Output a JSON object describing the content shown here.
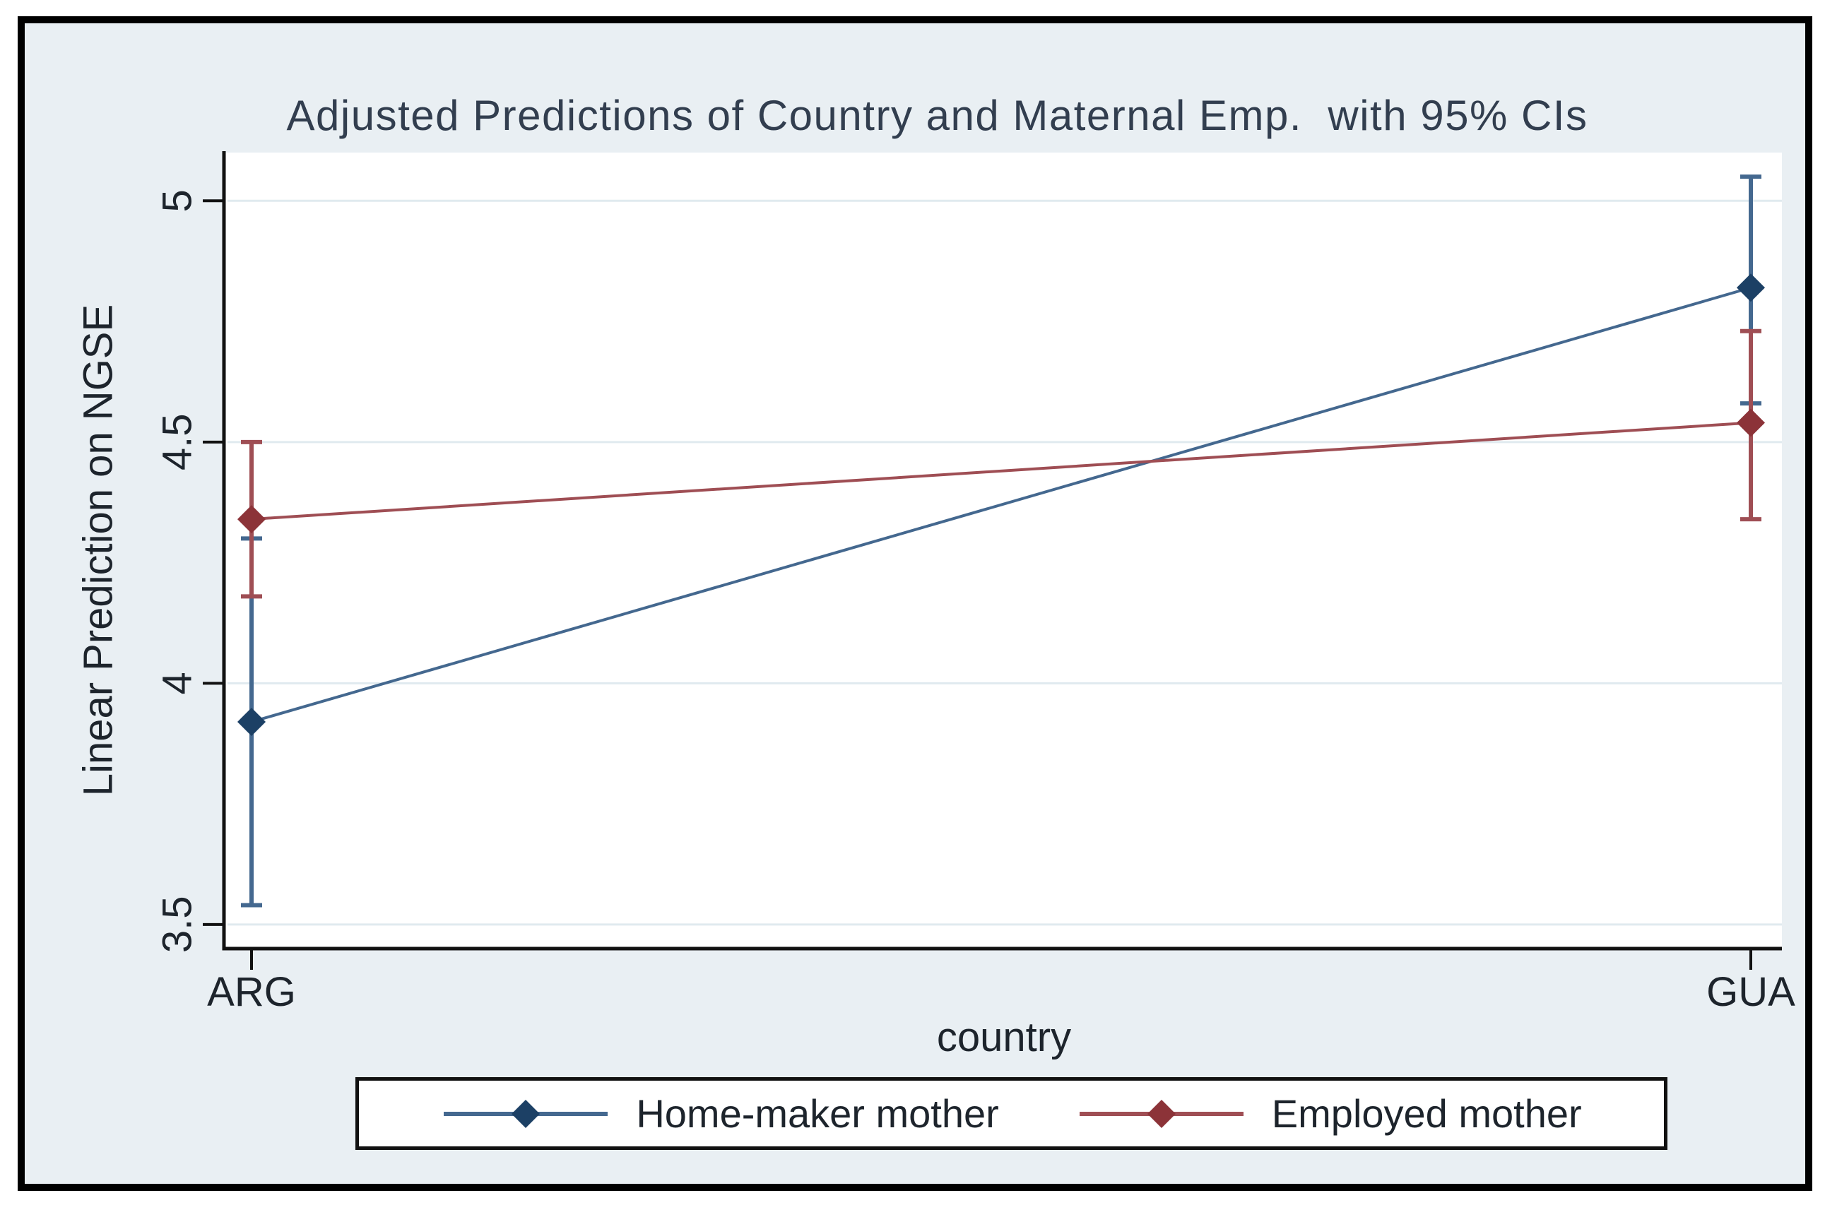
{
  "chart_data": {
    "type": "line",
    "title": "Adjusted Predictions of Country and Maternal Emp.  with 95% CIs",
    "xlabel": "country",
    "ylabel": "Linear Prediction on NGSE",
    "categories": [
      "ARG",
      "GUA"
    ],
    "series": [
      {
        "name": "Home-maker mother",
        "values": [
          3.92,
          4.82
        ],
        "ci_low": [
          3.54,
          4.58
        ],
        "ci_high": [
          4.3,
          5.05
        ],
        "line_color": "#44688f",
        "marker_color": "#1c4065"
      },
      {
        "name": "Employed mother",
        "values": [
          4.34,
          4.54
        ],
        "ci_low": [
          4.18,
          4.34
        ],
        "ci_high": [
          4.5,
          4.73
        ],
        "line_color": "#9f4e54",
        "marker_color": "#8c3338"
      }
    ],
    "yticks": [
      3.5,
      4,
      4.5,
      5
    ],
    "ytick_labels": [
      "3.5",
      "4",
      "4.5",
      "5"
    ],
    "ylim": [
      3.45,
      5.1
    ],
    "grid": true,
    "legend_position": "bottom",
    "marker_shape": "diamond",
    "error_bars": "95% confidence intervals"
  },
  "colors": {
    "canvas": "#e9eff3",
    "plot_bg": "#ffffff",
    "grid": "#e0eaef",
    "axis": "#111111",
    "text": "#1d242c",
    "title": "#323e4f",
    "frame": "#000000",
    "legend_bg": "#ffffff"
  }
}
